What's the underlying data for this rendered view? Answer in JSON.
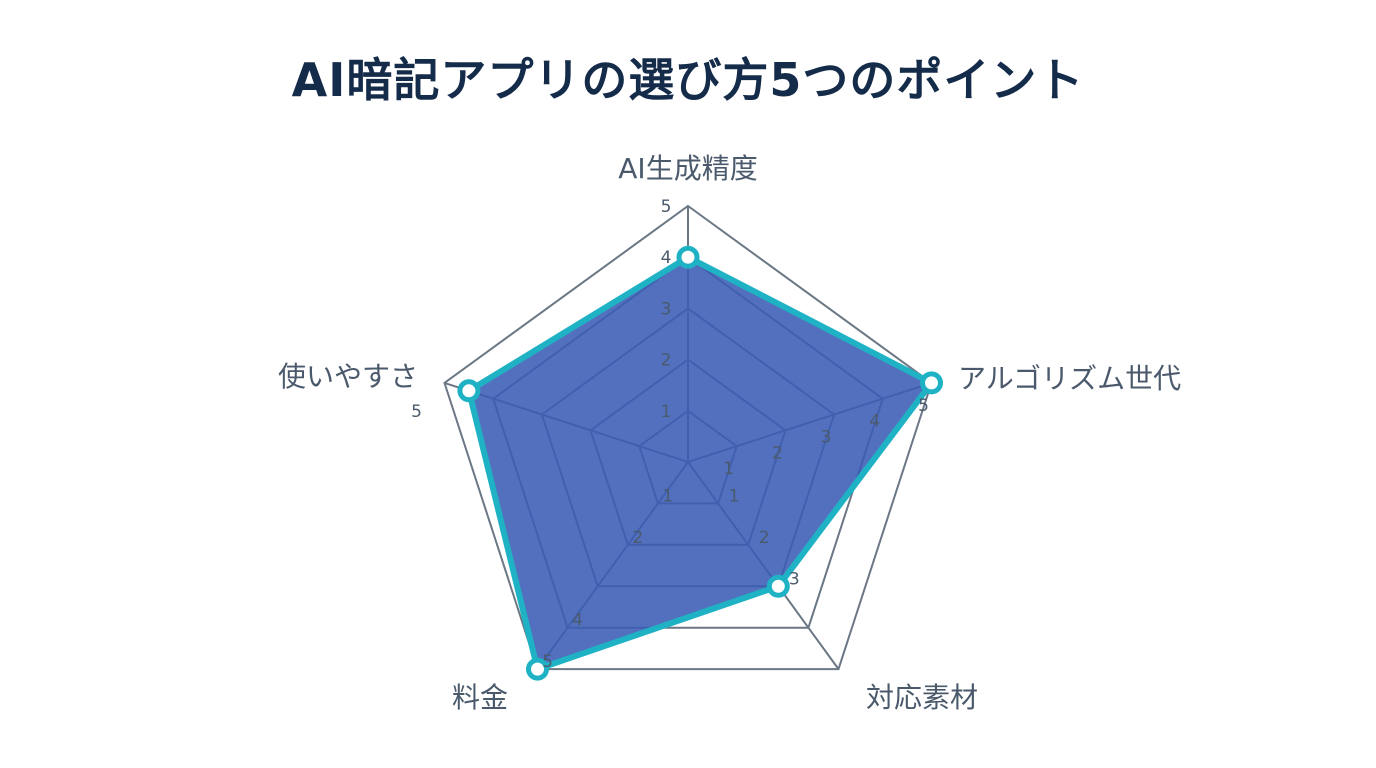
{
  "title": "AI暗記アプリの選び方5つのポイント",
  "colors": {
    "title": "#142b4a",
    "grid": "#6b7785",
    "fill": "#3a5cb5",
    "outline": "#1fb2c4",
    "text": "#4a5a6c"
  },
  "chart_data": {
    "type": "radar",
    "axes": [
      "AI生成精度",
      "アルゴリズム世代",
      "対応素材",
      "料金",
      "使いやすさ"
    ],
    "rlim": [
      0,
      5
    ],
    "levels": [
      1,
      2,
      3,
      4,
      5
    ],
    "series": [
      {
        "values": [
          4,
          5,
          3,
          5,
          4.5
        ]
      }
    ],
    "tick_labels": {
      "AI生成精度": [
        "1",
        "2",
        "3",
        "4",
        "5"
      ],
      "アルゴリズム世代": [
        "1",
        "2",
        "3",
        "4",
        "5"
      ],
      "対応素材": [
        "1",
        "2",
        "3"
      ],
      "料金": [
        "1",
        "2",
        "4",
        "5"
      ],
      "使いやすさ": [
        "5"
      ]
    }
  }
}
